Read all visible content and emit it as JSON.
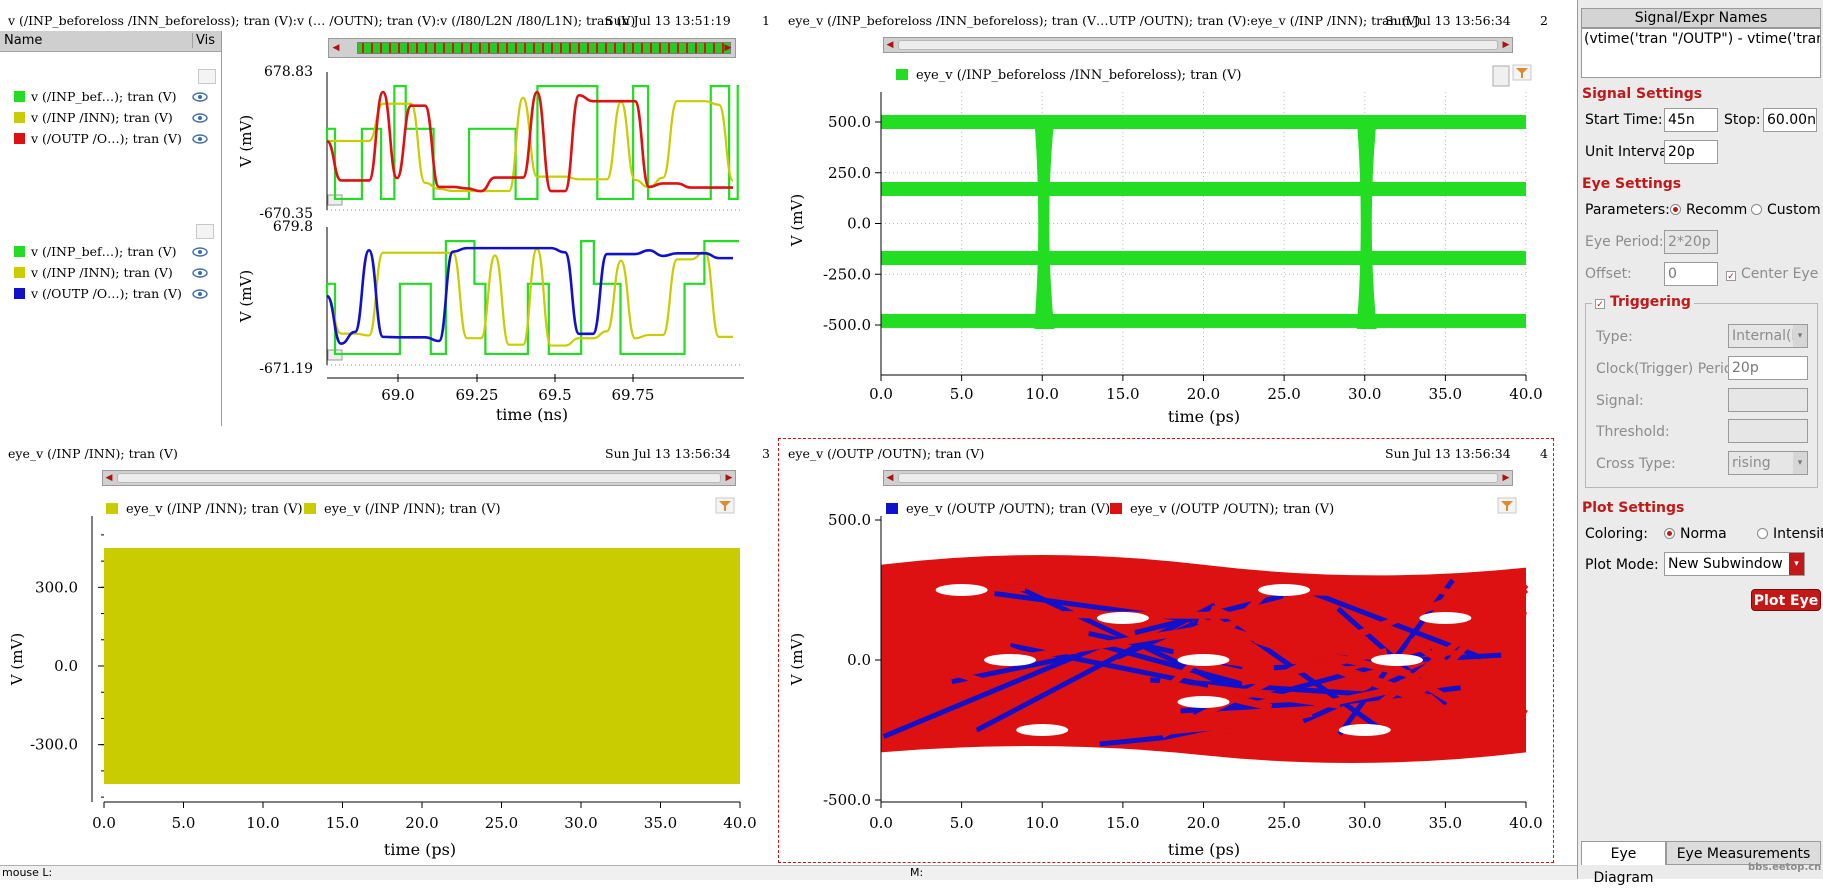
{
  "colors": {
    "green": "#22dd22",
    "yellow": "#c8cc00",
    "red": "#dd1111",
    "blue": "#1111cc",
    "accent": "#c21818"
  },
  "left_browser": {
    "header_name": "Name",
    "header_vis": "Vis",
    "group1": [
      {
        "label": "v (/INP_bef…); tran (V)",
        "color": "#22dd22"
      },
      {
        "label": "v (/INP /INN); tran (V)",
        "color": "#c8cc00"
      },
      {
        "label": "v (/OUTP /O…); tran (V)",
        "color": "#dd1111"
      }
    ],
    "group2": [
      {
        "label": "v (/INP_bef…); tran (V)",
        "color": "#22dd22"
      },
      {
        "label": "v (/INP /INN); tran (V)",
        "color": "#c8cc00"
      },
      {
        "label": "v (/OUTP /O…); tran (V)",
        "color": "#1111cc"
      }
    ]
  },
  "sub1": {
    "title": "v (/INP_beforeloss /INN_beforeloss); tran (V):v (… /OUTN); tran (V):v (/I80/L2N /I80/L1N); tran (V)",
    "date": "Sun Jul 13 13:51:19",
    "num": "1",
    "top_ymax": "678.83",
    "top_ymin": "-670.35",
    "bot_ymax": "679.8",
    "bot_ymin": "-671.19",
    "ylabel": "V (mV)",
    "xlabel": "time (ns)",
    "xticks": [
      "69.0",
      "69.25",
      "69.5",
      "69.75"
    ]
  },
  "sub2": {
    "title": "eye_v (/INP_beforeloss /INN_beforeloss); tran (V…UTP /OUTN); tran (V):eye_v (/INP /INN); tran (V)",
    "date": "Sun Jul 13 13:56:34",
    "num": "2",
    "legend": "eye_v (/INP_beforeloss /INN_beforeloss); tran (V)",
    "ylabel": "V (mV)",
    "xlabel": "time (ps)",
    "yticks": [
      "500.0",
      "250.0",
      "0.0",
      "-250.0",
      "-500.0"
    ],
    "xticks": [
      "0.0",
      "5.0",
      "10.0",
      "15.0",
      "20.0",
      "25.0",
      "30.0",
      "35.0",
      "40.0"
    ]
  },
  "sub3": {
    "title": "eye_v (/INP /INN); tran (V)",
    "date": "Sun Jul 13 13:56:34",
    "num": "3",
    "legend1": "eye_v (/INP /INN); tran (V)",
    "legend2": "eye_v (/INP /INN); tran (V)",
    "ylabel": "V (mV)",
    "xlabel": "time (ps)",
    "yticks": [
      "300.0",
      "0.0",
      "-300.0"
    ],
    "xticks": [
      "0.0",
      "5.0",
      "10.0",
      "15.0",
      "20.0",
      "25.0",
      "30.0",
      "35.0",
      "40.0"
    ]
  },
  "sub4": {
    "title": "eye_v (/OUTP /OUTN); tran (V)",
    "date": "Sun Jul 13 13:56:34",
    "num": "4",
    "legend1": "eye_v (/OUTP /OUTN); tran (V)",
    "legend2": "eye_v (/OUTP /OUTN); tran (V)",
    "ylabel": "V (mV)",
    "xlabel": "time (ps)",
    "yticks": [
      "500.0",
      "0.0",
      "-500.0"
    ],
    "xticks": [
      "0.0",
      "5.0",
      "10.0",
      "15.0",
      "20.0",
      "25.0",
      "30.0",
      "35.0",
      "40.0"
    ]
  },
  "panel": {
    "header": "Signal/Expr Names",
    "expr": "(vtime('tran \"/OUTP\") - vtime('tran …",
    "signal_settings": "Signal Settings",
    "start_label": "Start Time:",
    "start_value": "45n",
    "stop_label": "Stop:",
    "stop_value": "60.00n",
    "unit_label": "Unit Interva",
    "unit_value": "20p",
    "eye_settings": "Eye Settings",
    "params_label": "Parameters:",
    "opt_recomm": "Recomm",
    "opt_custom": "Custom",
    "period_label": "Eye Period:",
    "period_value": "2*20p",
    "offset_label": "Offset:",
    "offset_value": "0",
    "center_eye": "Center Eye",
    "triggering": "Triggering",
    "type_label": "Type:",
    "type_value": "Internal(I",
    "clock_label": "Clock(Trigger) Perio",
    "clock_value": "20p",
    "signal_label": "Signal:",
    "threshold_label": "Threshold:",
    "cross_label": "Cross Type:",
    "cross_value": "rising",
    "plot_settings": "Plot Settings",
    "coloring_label": "Coloring:",
    "opt_normal": "Norma",
    "opt_intensity": "Intensit",
    "plotmode_label": "Plot Mode:",
    "plotmode_value": "New Subwindow",
    "plot_eye": "Plot Eye",
    "tab_eye": "Eye Diagram",
    "tab_meas": "Eye Measurements"
  },
  "status": {
    "left": "mouse L:",
    "mid": "M:",
    "watermark": "bbs.eetop.cn"
  }
}
